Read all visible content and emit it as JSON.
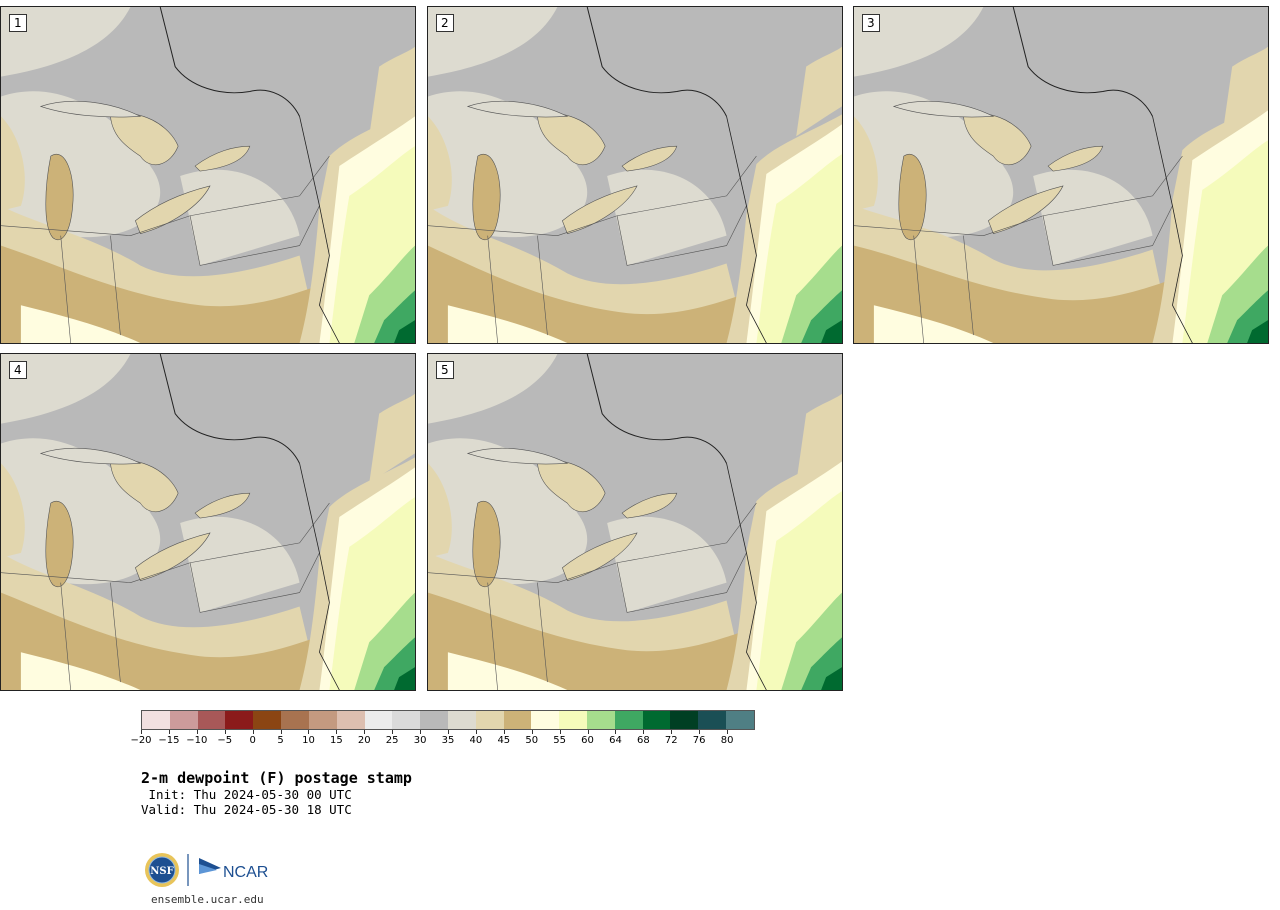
{
  "panels": [
    {
      "label": "1"
    },
    {
      "label": "2"
    },
    {
      "label": "3"
    },
    {
      "label": "4"
    },
    {
      "label": "5"
    }
  ],
  "colorbar": {
    "colors": [
      "#f2e1e1",
      "#cc9b9b",
      "#a85858",
      "#8b1a1a",
      "#8b4513",
      "#a87350",
      "#c49a80",
      "#ddbfb0",
      "#ececec",
      "#dadada",
      "#b9b9b9",
      "#dddbd0",
      "#e2d6ae",
      "#ccb278",
      "#fffde0",
      "#f5fbbb",
      "#a6dd8d",
      "#3fa862",
      "#006a30",
      "#003f23",
      "#1a4f55",
      "#4f7f84"
    ],
    "ticks": [
      "−20",
      "−15",
      "−10",
      "−5",
      "0",
      "5",
      "10",
      "15",
      "20",
      "25",
      "30",
      "35",
      "40",
      "45",
      "50",
      "55",
      "60",
      "64",
      "68",
      "72",
      "76",
      "80"
    ]
  },
  "title": "2-m dewpoint (F) postage stamp",
  "init": " Init: Thu 2024-05-30 00 UTC",
  "valid": "Valid: Thu 2024-05-30 18 UTC",
  "logo": {
    "nsf": "NSF",
    "ncar": "NCAR"
  },
  "url": "ensemble.ucar.edu"
}
